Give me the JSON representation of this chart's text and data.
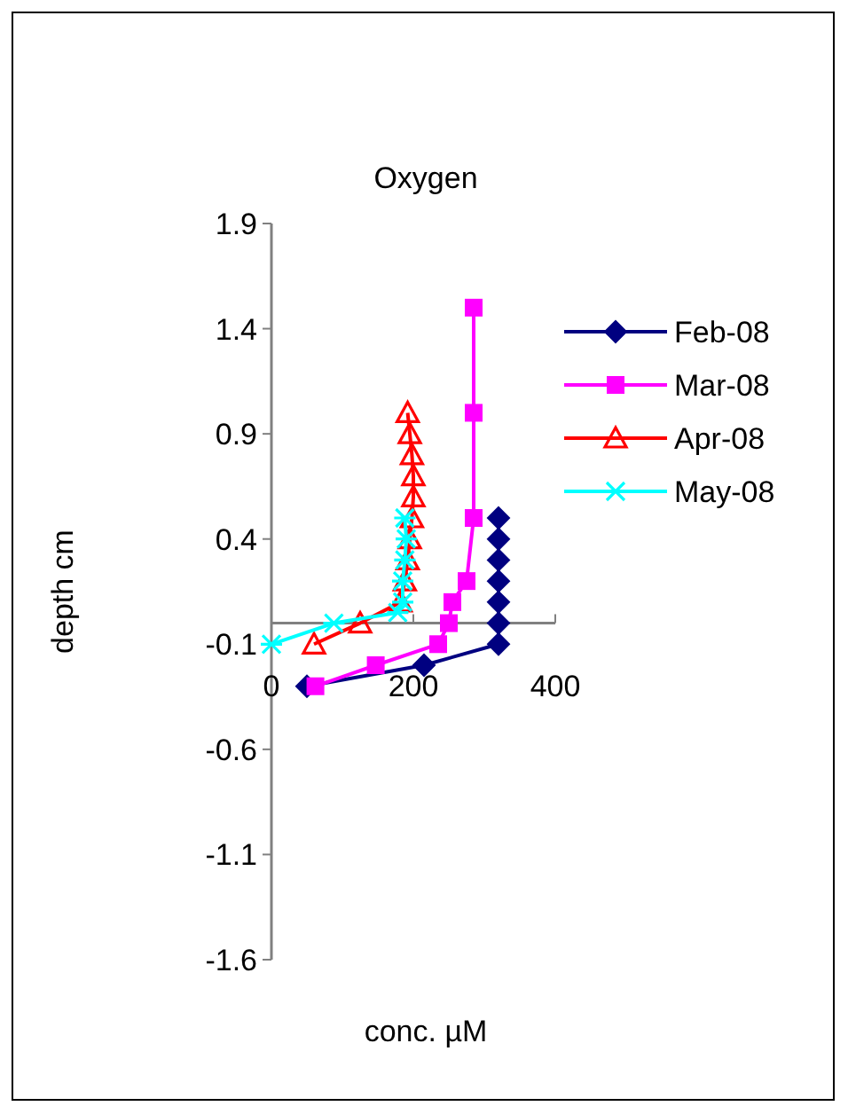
{
  "chart_data": {
    "type": "line",
    "title": "Oxygen",
    "xlabel": "conc. µM",
    "ylabel": "depth cm",
    "xlim": [
      0,
      400
    ],
    "xticks": [
      0,
      200,
      400
    ],
    "ylim": [
      -1.6,
      1.9
    ],
    "yticks": [
      -1.6,
      -1.1,
      -0.6,
      -0.1,
      0.4,
      0.9,
      1.4,
      1.9
    ],
    "legend": "right",
    "grid": false,
    "series": [
      {
        "name": "Feb-08",
        "color": "#000080",
        "marker": "diamond",
        "x": [
          320,
          320,
          320,
          320,
          320,
          320,
          320,
          215,
          50
        ],
        "values": [
          0.5,
          0.4,
          0.3,
          0.2,
          0.1,
          0,
          -0.1,
          -0.2,
          -0.3
        ]
      },
      {
        "name": "Mar-08",
        "color": "#ff00ff",
        "marker": "square",
        "x": [
          285,
          285,
          285,
          275,
          255,
          250,
          235,
          147,
          62
        ],
        "values": [
          1.5,
          1.0,
          0.5,
          0.2,
          0.1,
          0,
          -0.1,
          -0.2,
          -0.3
        ]
      },
      {
        "name": "Apr-08",
        "color": "#ff0000",
        "marker": "triangle",
        "x": [
          192,
          195,
          198,
          200,
          200,
          198,
          195,
          192,
          188,
          182,
          125,
          60
        ],
        "values": [
          1.0,
          0.9,
          0.8,
          0.7,
          0.6,
          0.5,
          0.4,
          0.3,
          0.2,
          0.1,
          0,
          -0.1
        ]
      },
      {
        "name": "May-08",
        "color": "#00ffff",
        "marker": "cross",
        "x": [
          188,
          190,
          188,
          185,
          185,
          178,
          88,
          0
        ],
        "values": [
          0.5,
          0.4,
          0.3,
          0.2,
          0.1,
          0.05,
          0,
          -0.1
        ]
      }
    ]
  }
}
